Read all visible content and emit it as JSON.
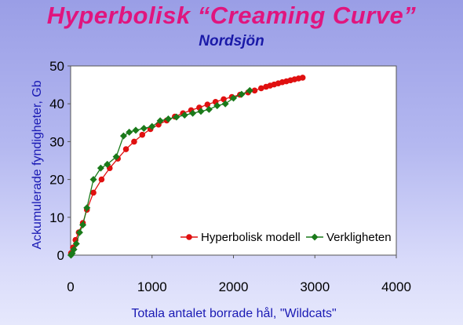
{
  "chart_data": {
    "type": "line",
    "title": "Hyperbolisk “Creaming Curve”",
    "subtitle": "Nordsjön",
    "xlabel": "Totala antalet borrade hål, \"Wildcats\"",
    "ylabel": "Ackumulerade fyndigheter, Gb",
    "xlim": [
      0,
      4000
    ],
    "ylim": [
      0,
      50
    ],
    "xticks": [
      "0",
      "1000",
      "2000",
      "3000",
      "4000"
    ],
    "yticks": [
      "0",
      "10",
      "20",
      "30",
      "40",
      "50"
    ],
    "legend_position": "bottom-right",
    "series": [
      {
        "name": "Hyperbolisk modell",
        "color": "#e01010",
        "marker": "circle",
        "points": [
          [
            5,
            0.5
          ],
          [
            30,
            2
          ],
          [
            60,
            4
          ],
          [
            100,
            6
          ],
          [
            150,
            8.5
          ],
          [
            200,
            12
          ],
          [
            280,
            16.5
          ],
          [
            380,
            20
          ],
          [
            480,
            23
          ],
          [
            580,
            25.5
          ],
          [
            680,
            28
          ],
          [
            780,
            30
          ],
          [
            880,
            31.8
          ],
          [
            980,
            33.3
          ],
          [
            1080,
            34.5
          ],
          [
            1180,
            35.6
          ],
          [
            1280,
            36.6
          ],
          [
            1380,
            37.5
          ],
          [
            1480,
            38.3
          ],
          [
            1580,
            39
          ],
          [
            1680,
            39.8
          ],
          [
            1780,
            40.5
          ],
          [
            1880,
            41.2
          ],
          [
            1980,
            41.8
          ],
          [
            2080,
            42.4
          ],
          [
            2180,
            43
          ],
          [
            2260,
            43.5
          ],
          [
            2340,
            44.1
          ],
          [
            2400,
            44.5
          ],
          [
            2450,
            44.8
          ],
          [
            2500,
            45.1
          ],
          [
            2550,
            45.4
          ],
          [
            2600,
            45.7
          ],
          [
            2650,
            45.95
          ],
          [
            2700,
            46.2
          ],
          [
            2750,
            46.45
          ],
          [
            2800,
            46.7
          ],
          [
            2850,
            46.9
          ]
        ]
      },
      {
        "name": "Verkligheten",
        "color": "#1a7a1a",
        "marker": "diamond",
        "points": [
          [
            5,
            0
          ],
          [
            20,
            0.5
          ],
          [
            40,
            1.5
          ],
          [
            70,
            3
          ],
          [
            110,
            6
          ],
          [
            150,
            8
          ],
          [
            200,
            12.5
          ],
          [
            280,
            20
          ],
          [
            370,
            23
          ],
          [
            450,
            24
          ],
          [
            560,
            26
          ],
          [
            650,
            31.5
          ],
          [
            720,
            32.5
          ],
          [
            800,
            33
          ],
          [
            900,
            33.5
          ],
          [
            1000,
            34
          ],
          [
            1100,
            35.5
          ],
          [
            1200,
            36
          ],
          [
            1300,
            36.5
          ],
          [
            1400,
            37
          ],
          [
            1500,
            37.5
          ],
          [
            1600,
            38
          ],
          [
            1700,
            38.5
          ],
          [
            1800,
            39.5
          ],
          [
            1900,
            40
          ],
          [
            2000,
            41.5
          ],
          [
            2100,
            42.5
          ],
          [
            2200,
            43.5
          ]
        ]
      }
    ]
  }
}
